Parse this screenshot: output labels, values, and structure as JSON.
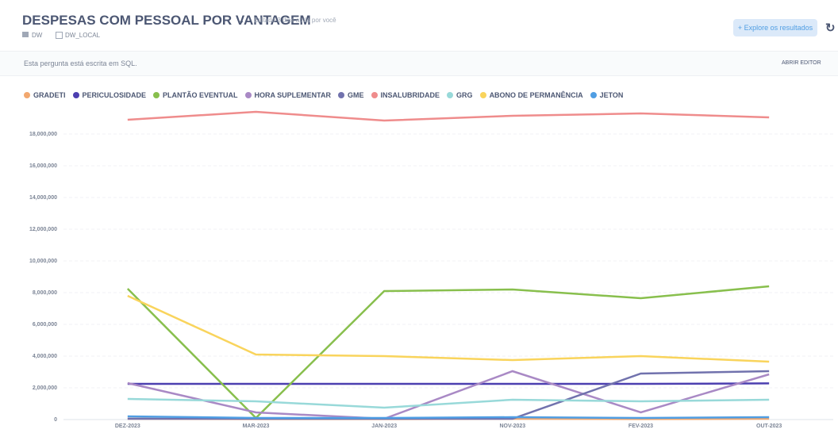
{
  "header": {
    "title": "DESPESAS COM PESSOAL POR VANTAGEM",
    "edited": "Editado 3 dias atrás por você",
    "breadcrumbs": [
      "DW",
      "DW_LOCAL"
    ],
    "explore_button": "Explore os resultados"
  },
  "sql_bar": {
    "text": "Esta pergunta está escrita em SQL.",
    "open_editor": "ABRIR EDITOR"
  },
  "chart_data": {
    "type": "line",
    "categories": [
      "DEZ-2023",
      "MAR-2023",
      "JAN-2023",
      "NOV-2023",
      "FEV-2023",
      "OUT-2023"
    ],
    "series": [
      {
        "name": "GRADETI",
        "color": "#F2A86F",
        "values": [
          50000,
          30000,
          30000,
          50000,
          30000,
          50000
        ]
      },
      {
        "name": "PERICULOSIDADE",
        "color": "#4C3FB0",
        "values": [
          2250000,
          2250000,
          2250000,
          2250000,
          2250000,
          2280000
        ]
      },
      {
        "name": "PLANTÃO EVENTUAL",
        "color": "#88BF4D",
        "values": [
          8250000,
          100000,
          8100000,
          8200000,
          7650000,
          8400000
        ]
      },
      {
        "name": "HORA SUPLEMENTAR",
        "color": "#A989C5",
        "values": [
          2300000,
          450000,
          50000,
          3050000,
          450000,
          2850000
        ]
      },
      {
        "name": "GME",
        "color": "#7172AD",
        "values": [
          50000,
          50000,
          50000,
          50000,
          2900000,
          3050000
        ]
      },
      {
        "name": "INSALUBRIDADE",
        "color": "#EF8C8C",
        "values": [
          18900000,
          19400000,
          18850000,
          19150000,
          19300000,
          19050000
        ]
      },
      {
        "name": "GRG",
        "color": "#98D9D9",
        "values": [
          1300000,
          1150000,
          750000,
          1250000,
          1150000,
          1250000
        ]
      },
      {
        "name": "ABONO DE PERMANÊNCIA",
        "color": "#F9D45C",
        "values": [
          7800000,
          4100000,
          4000000,
          3750000,
          4000000,
          3650000
        ]
      },
      {
        "name": "JETON",
        "color": "#509EE3",
        "values": [
          200000,
          100000,
          100000,
          150000,
          100000,
          150000
        ]
      }
    ],
    "ylim": [
      0,
      20000000
    ],
    "yticks": [
      0,
      {
        "value": 2000000,
        "label": "2,000,000"
      },
      {
        "value": 4000000,
        "label": "4,000,000"
      },
      {
        "value": 6000000,
        "label": "6,000,000"
      },
      {
        "value": 8000000,
        "label": "8,000,000"
      },
      {
        "value": 10000000,
        "label": "10,000,000"
      },
      {
        "value": 12000000,
        "label": "12,000,000"
      },
      {
        "value": 14000000,
        "label": "14,000,000"
      },
      {
        "value": 16000000,
        "label": "16,000,000"
      },
      {
        "value": 18000000,
        "label": "18,000,000"
      }
    ],
    "grid": true
  }
}
